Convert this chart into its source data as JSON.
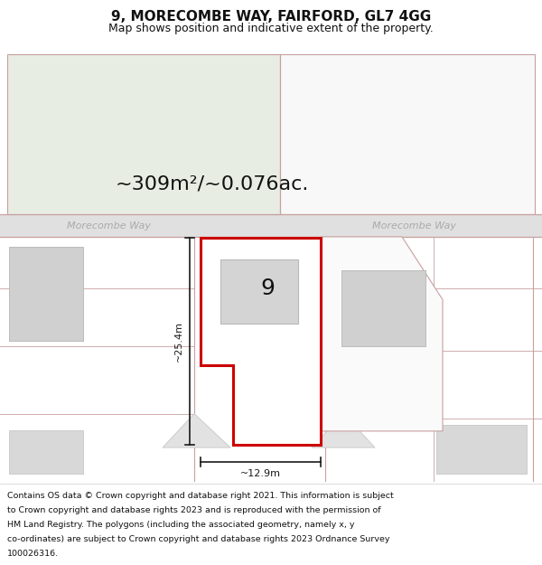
{
  "title": "9, MORECOMBE WAY, FAIRFORD, GL7 4GG",
  "subtitle": "Map shows position and indicative extent of the property.",
  "area_text": "~309m²/~0.076ac.",
  "width_label": "~12.9m",
  "height_label": "~25.4m",
  "number_label": "9",
  "road_label_left": "Morecombe Way",
  "road_label_right": "Morecombe Way",
  "footer_lines": [
    "Contains OS data © Crown copyright and database right 2021. This information is subject",
    "to Crown copyright and database rights 2023 and is reproduced with the permission of",
    "HM Land Registry. The polygons (including the associated geometry, namely x, y",
    "co-ordinates) are subject to Crown copyright and database rights 2023 Ordnance Survey",
    "100026316."
  ],
  "title_fontsize": 11,
  "subtitle_fontsize": 9,
  "area_fontsize": 16,
  "number_fontsize": 18,
  "dim_fontsize": 8,
  "road_fontsize": 8,
  "footer_fontsize": 6.8,
  "bg_white": "#ffffff",
  "map_bg": "#ffffff",
  "road_bg": "#e0e0e0",
  "green_fill": "#e8ede3",
  "gray_fill": "#d0d0d0",
  "plot_border_color": "#cc0000",
  "plot_fill": "#ffffff",
  "road_label_color": "#aaaaaa",
  "road_border_color": "#c8a0a0",
  "dim_color": "#1a1a1a",
  "title_color": "#111111",
  "footer_color": "#111111"
}
